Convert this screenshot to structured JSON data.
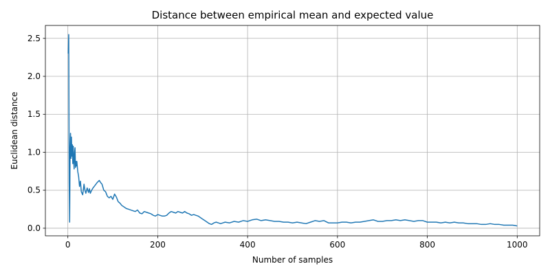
{
  "chart_data": {
    "type": "line",
    "title": "Distance between empirical mean and expected value",
    "xlabel": "Number of samples",
    "ylabel": "Euclidean distance",
    "xlim": [
      -50,
      1050
    ],
    "ylim": [
      -0.1,
      2.67
    ],
    "xticks": [
      0,
      200,
      400,
      600,
      800,
      1000
    ],
    "yticks": [
      0.0,
      0.5,
      1.0,
      1.5,
      2.0,
      2.5
    ],
    "xtick_labels": [
      "0",
      "200",
      "400",
      "600",
      "800",
      "1000"
    ],
    "ytick_labels": [
      "0.0",
      "0.5",
      "1.0",
      "1.5",
      "2.0",
      "2.5"
    ],
    "grid": true,
    "line_color": "#1f77b4",
    "grid_color": "#b0b0b0",
    "series": [
      {
        "x": [
          1,
          2,
          3,
          4,
          5,
          6,
          7,
          8,
          9,
          10,
          11,
          12,
          13,
          14,
          15,
          16,
          17,
          18,
          19,
          20,
          22,
          24,
          26,
          28,
          30,
          33,
          36,
          38,
          40,
          43,
          46,
          48,
          50,
          53,
          56,
          60,
          65,
          70,
          73,
          76,
          80,
          84,
          88,
          92,
          96,
          100,
          104,
          108,
          112,
          116,
          120,
          125,
          130,
          135,
          140,
          145,
          150,
          155,
          160,
          165,
          170,
          175,
          180,
          185,
          190,
          195,
          200,
          205,
          210,
          215,
          220,
          225,
          230,
          235,
          240,
          245,
          250,
          255,
          260,
          265,
          270,
          275,
          280,
          285,
          290,
          295,
          300,
          305,
          310,
          315,
          320,
          325,
          330,
          335,
          340,
          345,
          350,
          360,
          370,
          380,
          390,
          400,
          410,
          420,
          430,
          440,
          450,
          460,
          470,
          480,
          490,
          500,
          510,
          520,
          530,
          540,
          550,
          560,
          570,
          580,
          590,
          600,
          610,
          620,
          630,
          640,
          650,
          660,
          670,
          680,
          690,
          700,
          710,
          720,
          730,
          740,
          750,
          760,
          770,
          780,
          790,
          800,
          810,
          820,
          830,
          840,
          850,
          860,
          870,
          880,
          890,
          900,
          910,
          920,
          930,
          940,
          950,
          960,
          970,
          980,
          990,
          1000
        ],
        "y": [
          2.3,
          2.55,
          0.6,
          0.08,
          1.05,
          1.25,
          0.92,
          1.2,
          0.95,
          1.1,
          0.85,
          1.08,
          0.9,
          0.78,
          1.0,
          1.06,
          0.8,
          0.88,
          0.82,
          0.88,
          0.75,
          0.68,
          0.55,
          0.62,
          0.48,
          0.44,
          0.58,
          0.5,
          0.46,
          0.53,
          0.47,
          0.52,
          0.46,
          0.5,
          0.53,
          0.56,
          0.6,
          0.63,
          0.6,
          0.58,
          0.5,
          0.48,
          0.42,
          0.4,
          0.42,
          0.38,
          0.45,
          0.41,
          0.35,
          0.33,
          0.3,
          0.28,
          0.26,
          0.25,
          0.24,
          0.23,
          0.22,
          0.24,
          0.2,
          0.19,
          0.22,
          0.21,
          0.2,
          0.19,
          0.17,
          0.16,
          0.18,
          0.17,
          0.16,
          0.16,
          0.17,
          0.2,
          0.22,
          0.21,
          0.2,
          0.22,
          0.21,
          0.2,
          0.22,
          0.2,
          0.19,
          0.17,
          0.18,
          0.17,
          0.16,
          0.14,
          0.12,
          0.1,
          0.08,
          0.06,
          0.05,
          0.07,
          0.08,
          0.07,
          0.06,
          0.07,
          0.08,
          0.07,
          0.09,
          0.08,
          0.1,
          0.09,
          0.11,
          0.12,
          0.1,
          0.11,
          0.1,
          0.09,
          0.09,
          0.08,
          0.08,
          0.07,
          0.08,
          0.07,
          0.06,
          0.08,
          0.1,
          0.09,
          0.1,
          0.07,
          0.07,
          0.07,
          0.08,
          0.08,
          0.07,
          0.08,
          0.08,
          0.09,
          0.1,
          0.11,
          0.09,
          0.09,
          0.1,
          0.1,
          0.11,
          0.1,
          0.11,
          0.1,
          0.09,
          0.1,
          0.1,
          0.08,
          0.08,
          0.08,
          0.07,
          0.08,
          0.07,
          0.08,
          0.07,
          0.07,
          0.06,
          0.06,
          0.06,
          0.05,
          0.05,
          0.06,
          0.05,
          0.05,
          0.04,
          0.04,
          0.04,
          0.03
        ]
      }
    ]
  }
}
